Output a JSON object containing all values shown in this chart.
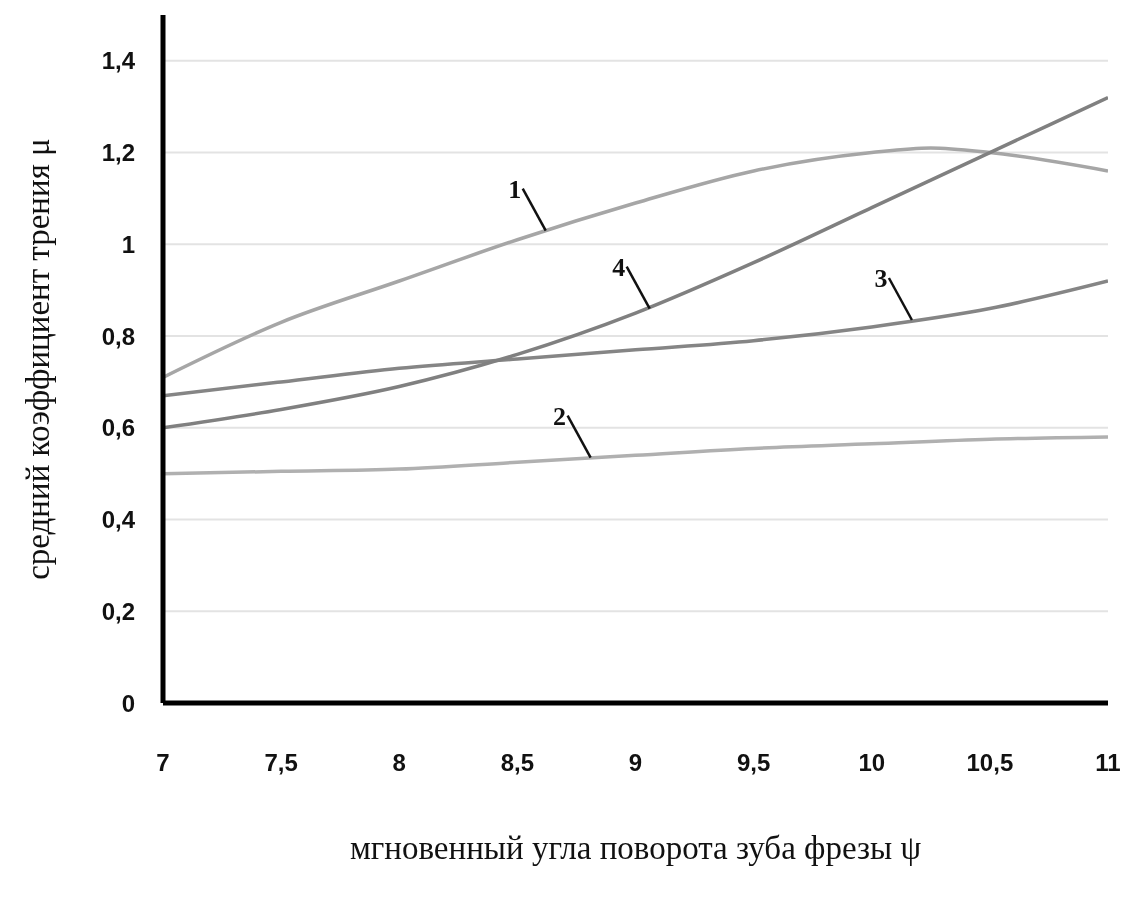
{
  "chart_data": {
    "type": "line",
    "xlabel": "мгновенный угла поворота зуба фрезы ψ",
    "ylabel": "средний коэффициент трения μ",
    "x": [
      7,
      7.5,
      8,
      8.5,
      9,
      9.5,
      10,
      10.5,
      11
    ],
    "series": [
      {
        "color": "#a6a6a6",
        "x": [
          7,
          7.5,
          8,
          8.5,
          9,
          9.5,
          10,
          10.25,
          10.5,
          11
        ],
        "values": [
          0.71,
          0.83,
          0.92,
          1.01,
          1.09,
          1.16,
          1.2,
          1.21,
          1.2,
          1.16
        ]
      },
      {
        "color": "#b0b0b0",
        "values": [
          0.5,
          0.505,
          0.51,
          0.525,
          0.54,
          0.555,
          0.565,
          0.575,
          0.58
        ]
      },
      {
        "color": "#858585",
        "values": [
          0.67,
          0.7,
          0.73,
          0.75,
          0.77,
          0.79,
          0.82,
          0.86,
          0.92
        ]
      },
      {
        "color": "#808080",
        "values": [
          0.6,
          0.64,
          0.69,
          0.76,
          0.85,
          0.96,
          1.08,
          1.2,
          1.32
        ]
      }
    ],
    "xlim": [
      7,
      11
    ],
    "xticks": [
      7,
      {
        "value": 7.5,
        "label": "7,5"
      },
      8,
      {
        "value": 8.5,
        "label": "8,5"
      },
      9,
      {
        "value": 9.5,
        "label": "9,5"
      },
      10,
      {
        "value": 10.5,
        "label": "10,5"
      },
      11
    ],
    "ylim": [
      0,
      1.5
    ],
    "yticks": [
      0,
      {
        "value": 0.2,
        "label": "0,2"
      },
      {
        "value": 0.4,
        "label": "0,4"
      },
      {
        "value": 0.6,
        "label": "0,6"
      },
      {
        "value": 0.8,
        "label": "0,8"
      },
      1,
      {
        "value": 1.2,
        "label": "1,2"
      },
      {
        "value": 1.4,
        "label": "1,4"
      }
    ],
    "annotations": [
      {
        "text": "1",
        "x": 8.62,
        "y": 1.03
      },
      {
        "text": "4",
        "x": 9.06,
        "y": 0.86
      },
      {
        "text": "3",
        "x": 10.17,
        "y": 0.835
      },
      {
        "text": "2",
        "x": 8.81,
        "y": 0.535
      }
    ],
    "grid": "y",
    "marker": "none",
    "line_style": "solid",
    "legend": false
  }
}
